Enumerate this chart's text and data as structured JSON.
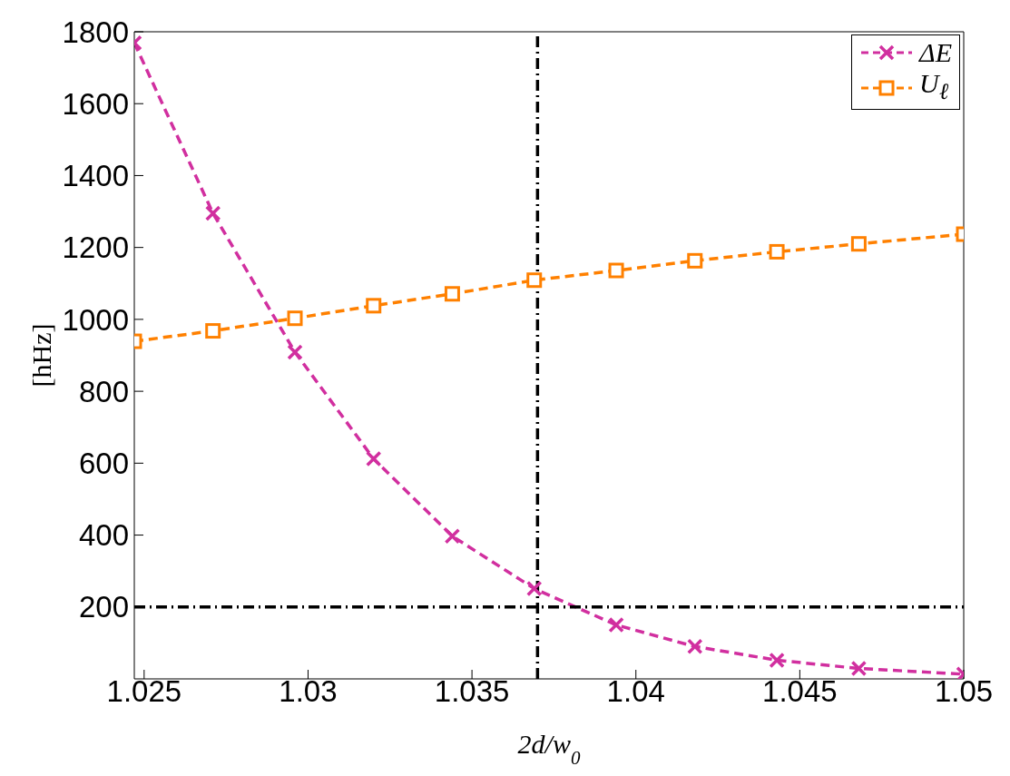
{
  "chart_data": {
    "type": "line",
    "xlabel": "2d/w$_{0}$",
    "ylabel": "[hHz]",
    "xlim": [
      1.0247,
      1.05
    ],
    "xticks": [
      1.025,
      1.03,
      1.035,
      1.04,
      1.045,
      1.05
    ],
    "ylim": [
      0,
      1800
    ],
    "yticks": [
      200,
      400,
      600,
      800,
      1000,
      1200,
      1400,
      1600,
      1800
    ],
    "x": [
      1.0247,
      1.0271,
      1.0296,
      1.032,
      1.0344,
      1.0369,
      1.0394,
      1.0418,
      1.0443,
      1.0468,
      1.05
    ],
    "series": [
      {
        "name": "ΔE",
        "color": "#d12f9f",
        "marker": "cross",
        "values": [
          1769,
          1295,
          909,
          612,
          397,
          251,
          150,
          90,
          52,
          29,
          13
        ]
      },
      {
        "name": "U$_{ℓ}$",
        "color": "#ff8000",
        "marker": "square",
        "values": [
          939,
          968,
          1003,
          1038,
          1071,
          1109,
          1136,
          1163,
          1188,
          1210,
          1237
        ]
      }
    ],
    "ref_lines": [
      {
        "axis": "x",
        "value": 1.037,
        "color": "#000000",
        "line_style": "dashdot"
      },
      {
        "axis": "y",
        "value": 200,
        "color": "#000000",
        "line_style": "dashdot"
      }
    ],
    "line_style": "dashed",
    "grid": false,
    "legend": "top right"
  }
}
